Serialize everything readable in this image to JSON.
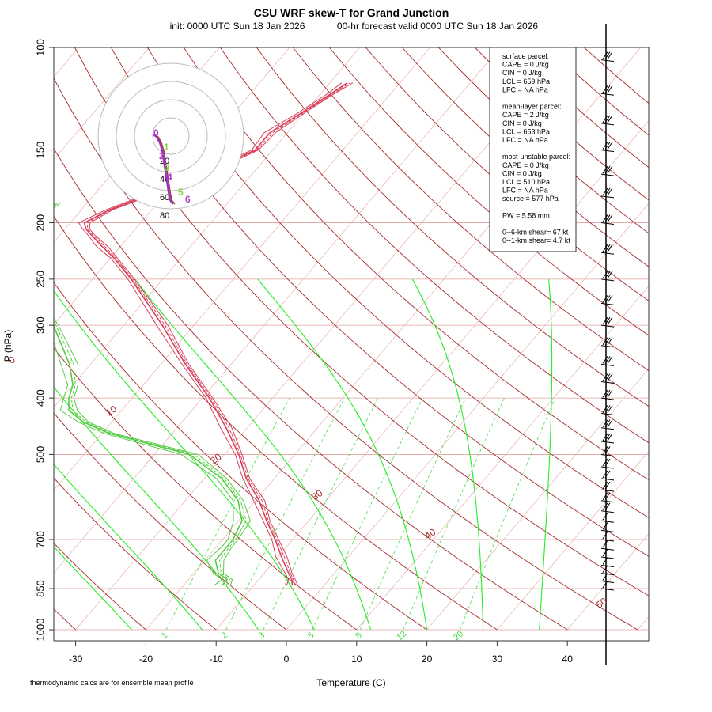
{
  "chart_data": {
    "type": "skew-t",
    "title": "CSU WRF skew-T for Grand Junction",
    "subtitle_init": "init: 0000 UTC Sun 18 Jan 2026",
    "subtitle_valid": "00-hr forecast valid 0000 UTC Sun 18 Jan 2026",
    "xlabel": "Temperature (C)",
    "ylabel": "P (hPa)",
    "footnote": "thermodynamic calcs are for ensemble mean profile",
    "pressure_ticks": [
      "100",
      "150",
      "200",
      "250",
      "300",
      "400",
      "500",
      "700",
      "850",
      "1000"
    ],
    "pressure_values": [
      100,
      150,
      200,
      250,
      300,
      400,
      500,
      700,
      850,
      1000
    ],
    "temp_ticks": [
      "-30",
      "-20",
      "-10",
      "0",
      "10",
      "20",
      "30",
      "40"
    ],
    "temp_values": [
      -30,
      -20,
      -10,
      0,
      10,
      20,
      30,
      40
    ],
    "plim": [
      1000,
      100
    ],
    "tlim": [
      -33,
      47
    ],
    "dry_adiabat_labels": [
      "-10",
      "0",
      "10",
      "20",
      "30",
      "40",
      "50"
    ],
    "mixing_ratio_labels": [
      "1",
      "2",
      "3",
      "5",
      "8",
      "12",
      "20"
    ],
    "info_box": [
      "surface parcel:",
      "CAPE = 0 J/kg",
      "CIN = 0 J/kg",
      "LCL = 659 hPa",
      "LFC = NA hPa",
      "",
      "mean-layer parcel:",
      "CAPE = 2 J/kg",
      "CIN = 0 J/kg",
      "LCL = 653 hPa",
      "LFC = NA hPa",
      "",
      "most-unstable parcel:",
      "CAPE = 0 J/kg",
      "CIN = 0 J/kg",
      "LCL = 510 hPa",
      "LFC = NA hPa",
      "source = 577 hPa",
      "",
      "PW =  5.58 mm",
      "",
      "0--6-km shear= 67 kt",
      "0--1-km shear= 4.7 kt"
    ],
    "temperature_profile": {
      "p": [
        840,
        820,
        800,
        750,
        700,
        650,
        600,
        550,
        500,
        450,
        400,
        350,
        300,
        250,
        230,
        220,
        210,
        205,
        200,
        190,
        180,
        170,
        160,
        150,
        140,
        130,
        120,
        115
      ],
      "t": [
        -4.5,
        -5.3,
        -6.5,
        -9.5,
        -12.5,
        -16.0,
        -19.5,
        -24.0,
        -28.0,
        -33.0,
        -39.0,
        -46.5,
        -54.5,
        -64.5,
        -69.5,
        -72.5,
        -75.5,
        -77.0,
        -78.0,
        -76.0,
        -72.5,
        -69.0,
        -65.5,
        -62.5,
        -62.5,
        -60.5,
        -58.5,
        -57.5
      ]
    },
    "dewpoint_profile": {
      "p": [
        840,
        820,
        800,
        760,
        720,
        700,
        650,
        600,
        550,
        500,
        460,
        440,
        420,
        400,
        380,
        350,
        300,
        270,
        250,
        230,
        210,
        200,
        190,
        185
      ],
      "td": [
        -14.5,
        -14.5,
        -16.5,
        -18.5,
        -18.5,
        -18.5,
        -19.5,
        -22.5,
        -27.5,
        -35.0,
        -49.0,
        -54.0,
        -57.5,
        -59.0,
        -60.0,
        -63.0,
        -70.0,
        -76.0,
        -81.0,
        -85.0,
        -86.0,
        -85.0,
        -85.0,
        -84.5
      ]
    },
    "wind_barbs_p": [
      105,
      120,
      135,
      150,
      165,
      180,
      200,
      225,
      250,
      275,
      300,
      325,
      350,
      375,
      400,
      425,
      450,
      475,
      500,
      525,
      550,
      575,
      600,
      625,
      650,
      675,
      700,
      725,
      750,
      775,
      800,
      825,
      850
    ],
    "hodograph_ring_labels": [
      "20",
      "40",
      "60",
      "80"
    ],
    "hodograph_height_labels": [
      "0",
      "1",
      "2",
      "3",
      "4",
      "5",
      "6"
    ]
  },
  "colors": {
    "isotherm": "#e8b0b0",
    "isobar": "#e3a0a0",
    "dry_adiabat": "#a52a2a",
    "mixing_ratio": "#44dd44",
    "moist_adiabat": "#22ee22",
    "temperature": "#d8405a",
    "dewpoint": "#55cc44",
    "hodograph_trace": "#9933cc"
  }
}
